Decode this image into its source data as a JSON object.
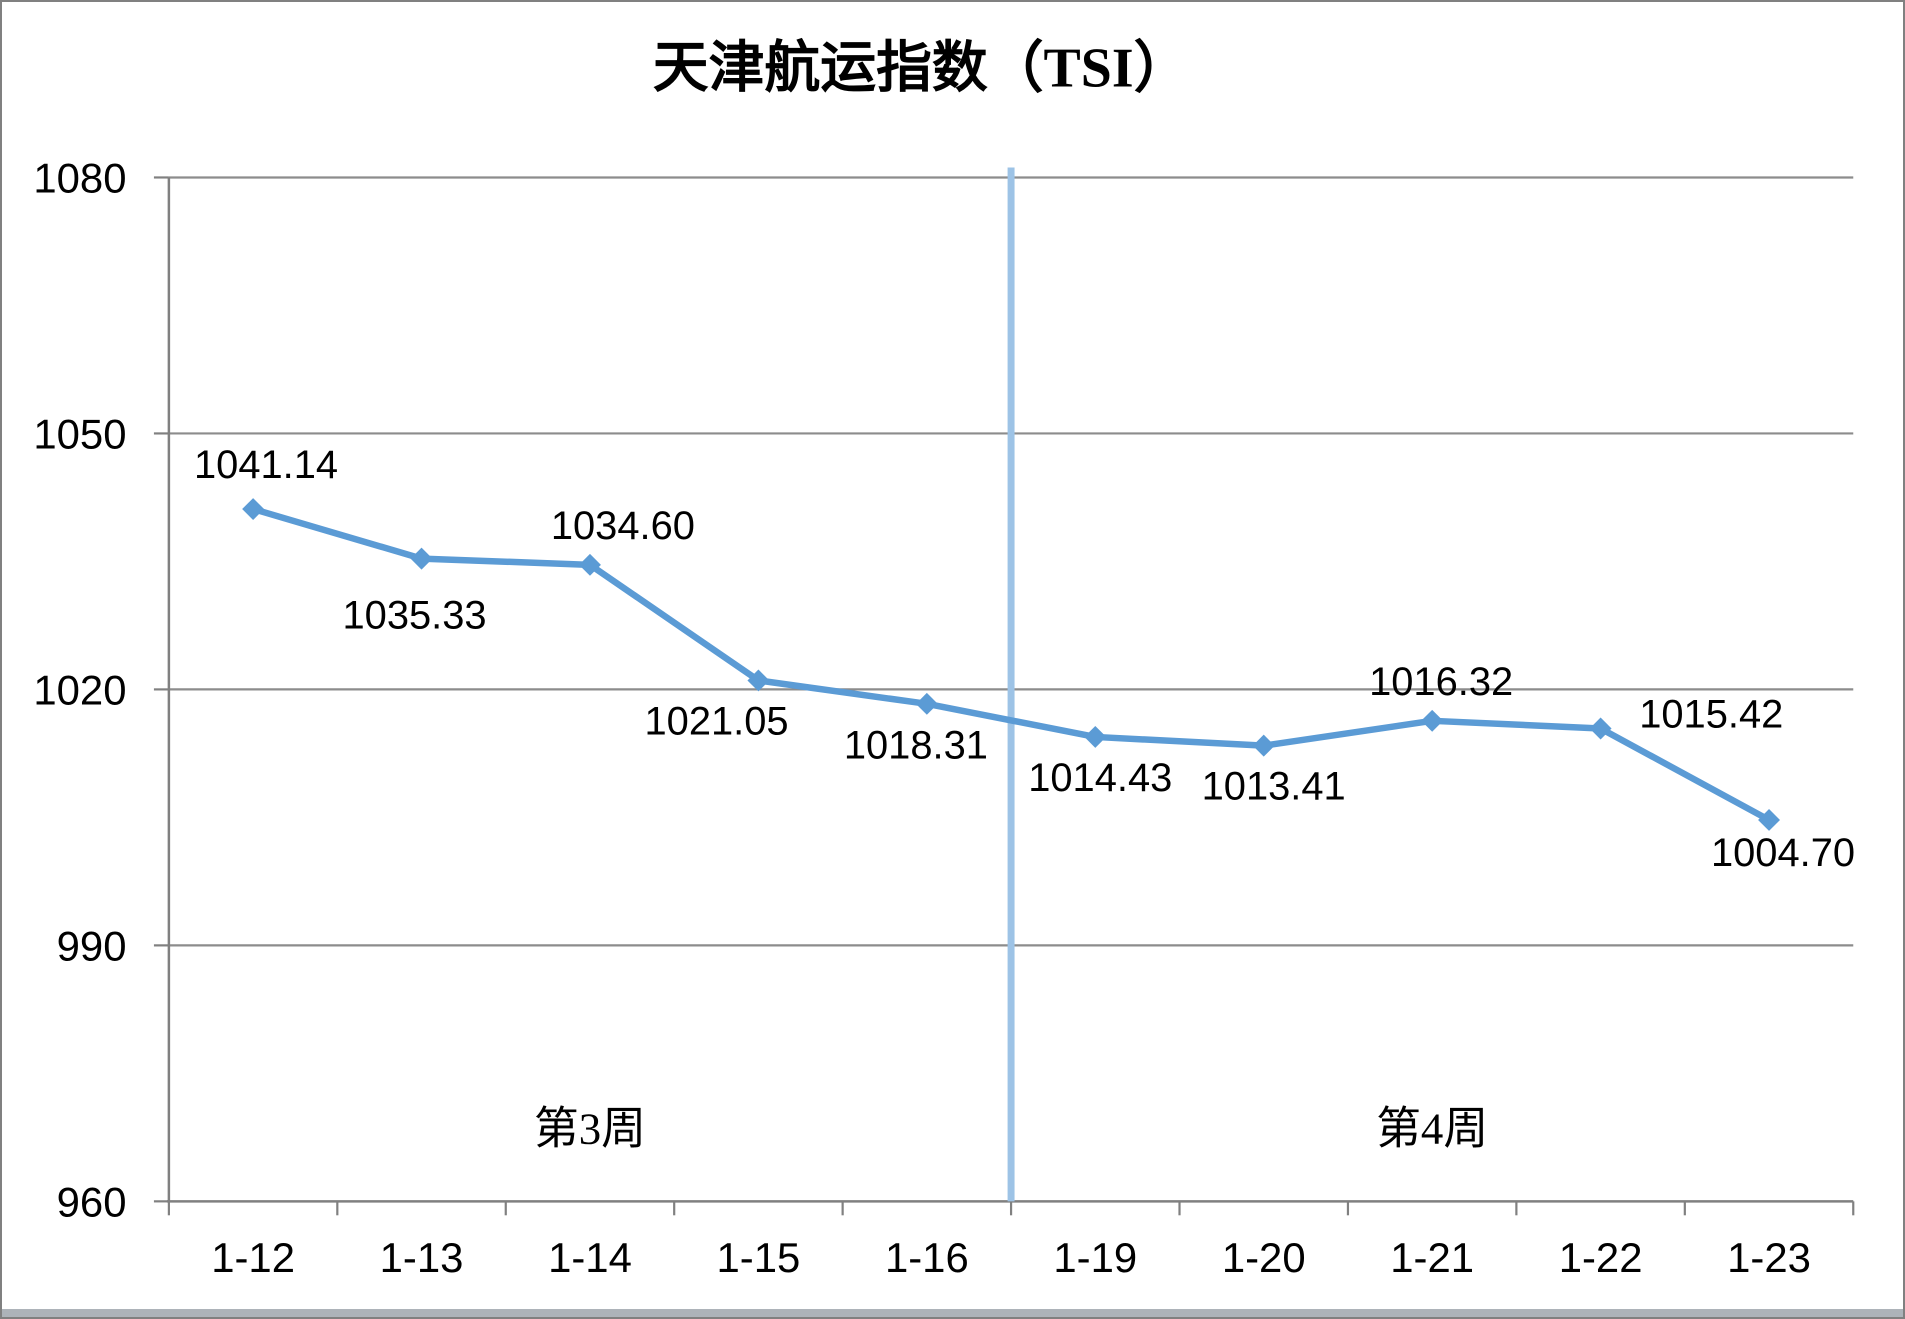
{
  "chart_data": {
    "type": "line",
    "title": "天津航运指数（TSI）",
    "categories": [
      "1-12",
      "1-13",
      "1-14",
      "1-15",
      "1-16",
      "1-19",
      "1-20",
      "1-21",
      "1-22",
      "1-23"
    ],
    "values": [
      1041.14,
      1035.33,
      1034.6,
      1021.05,
      1018.31,
      1014.43,
      1013.41,
      1016.32,
      1015.42,
      1004.7
    ],
    "data_labels": [
      "1041.14",
      "1035.33",
      "1034.60",
      "1021.05",
      "1018.31",
      "1014.43",
      "1013.41",
      "1016.32",
      "1015.42",
      "1004.70"
    ],
    "y_ticks": [
      960,
      990,
      1020,
      1050,
      1080
    ],
    "y_tick_labels": [
      "960",
      "990",
      "1020",
      "1050",
      "1080"
    ],
    "ylim": [
      960,
      1080
    ],
    "xlabel": "",
    "ylabel": "",
    "grid": true,
    "legend": "none",
    "marker": "diamond",
    "annotations": [
      {
        "text": "第3周",
        "region": "week3"
      },
      {
        "text": "第4周",
        "region": "week4"
      }
    ],
    "divider": {
      "after_category": "1-16"
    },
    "colors": {
      "series": "#5B9BD5",
      "divider": "#9DC3E6",
      "gridline": "#8C8C8C",
      "axis": "#808080",
      "text": "#000000",
      "background": "#FFFFFF",
      "frame_border": "#808080",
      "bottom_edge": "#ADB3B9"
    }
  }
}
